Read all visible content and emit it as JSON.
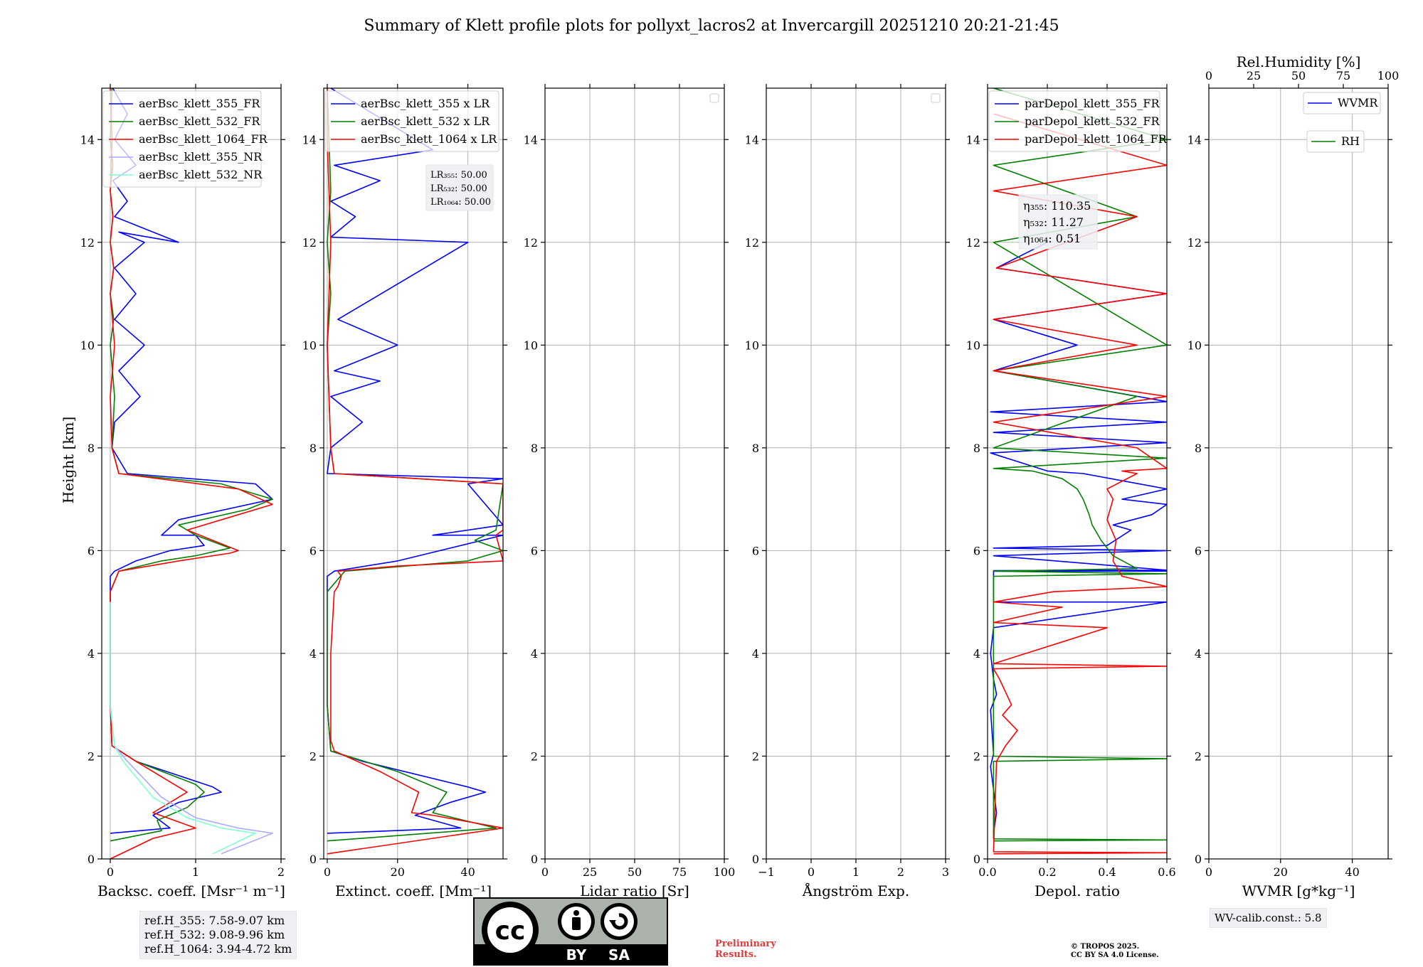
{
  "title": "Summary of Klett profile plots for pollyxt_lacros2 at Invercargill 20251210 20:21-21:45",
  "ylabel": "Height [km]",
  "ref_heights": [
    "ref.H_355: 7.58-9.07 km",
    "ref.H_532: 9.08-9.96 km",
    "ref.H_1064: 3.94-4.72 km"
  ],
  "wv_calib": "WV-calib.const.: 5.8",
  "preliminary": [
    "Preliminary",
    "Results."
  ],
  "copyright": [
    "© TROPOS 2025.",
    "CC BY SA 4.0 License."
  ],
  "license_badge": {
    "cc": "cc",
    "by": "BY",
    "sa": "SA"
  },
  "colors": {
    "c355": "#0000ff",
    "c532": "#008000",
    "c1064": "#ff0000",
    "c355nr": "#aaaaff",
    "c532nr": "#80ffd0",
    "grid": "#b0b0b0"
  },
  "chart_data": [
    {
      "type": "line",
      "id": "bsc",
      "xlabel": "Backsc. coeff. [Msr⁻¹ m⁻¹]",
      "xlim": [
        -0.1,
        2.0
      ],
      "ylim": [
        0,
        15
      ],
      "xticks": [
        0,
        1,
        2
      ],
      "yticks": [
        0,
        2,
        4,
        6,
        8,
        10,
        12,
        14
      ],
      "legend": [
        "aerBsc_klett_355_FR",
        "aerBsc_klett_532_FR",
        "aerBsc_klett_1064_FR",
        "aerBsc_klett_355_NR",
        "aerBsc_klett_532_NR"
      ],
      "series": [
        {
          "name": "aerBsc_klett_355_FR",
          "color": "#0000ff",
          "x": [
            0,
            0.7,
            0.5,
            0.8,
            1.3,
            1.2,
            0.3,
            0.02,
            0.0,
            0.0,
            0.05,
            0.3,
            0.7,
            1.1,
            1.0,
            0.6,
            0.8,
            1.9,
            1.7,
            0.2,
            0.02,
            0.05,
            0.35,
            0.1,
            0.4,
            0.05,
            0.3,
            0.05,
            0.4,
            0.1,
            0.8,
            0.05,
            0.2,
            0.03,
            0.3,
            0.05,
            0.2,
            0.03
          ],
          "y": [
            0.5,
            0.6,
            0.85,
            1.1,
            1.3,
            1.4,
            1.9,
            2.2,
            3.0,
            5.5,
            5.6,
            5.8,
            6.0,
            6.1,
            6.3,
            6.3,
            6.6,
            7.0,
            7.3,
            7.5,
            8.0,
            8.5,
            9.0,
            9.5,
            10.0,
            10.5,
            11.0,
            11.5,
            12.0,
            12.2,
            12.0,
            12.5,
            12.8,
            13.2,
            13.5,
            14.0,
            14.5,
            15.0
          ]
        },
        {
          "name": "aerBsc_klett_532_FR",
          "color": "#008000",
          "x": [
            0.0,
            0.6,
            0.55,
            0.9,
            1.1,
            1.0,
            0.3,
            0.02,
            0.0,
            0.0,
            0.1,
            0.6,
            1.0,
            1.4,
            1.0,
            0.8,
            1.6,
            1.9,
            1.3,
            0.1,
            0.02,
            0.05,
            0.0,
            0.04,
            0.0,
            0.04,
            0.0,
            0.03,
            0.0,
            0.03,
            0.0,
            0.02
          ],
          "y": [
            0.35,
            0.55,
            0.75,
            1.0,
            1.3,
            1.45,
            1.9,
            2.2,
            3.0,
            5.2,
            5.6,
            5.8,
            5.9,
            6.05,
            6.3,
            6.5,
            6.8,
            7.0,
            7.3,
            7.5,
            8.0,
            9.0,
            10.0,
            10.5,
            11.0,
            11.5,
            12.0,
            12.5,
            13.0,
            13.5,
            14.0,
            15.0
          ]
        },
        {
          "name": "aerBsc_klett_1064_FR",
          "color": "#ff0000",
          "x": [
            0.0,
            0.5,
            1.0,
            0.5,
            0.9,
            0.3,
            0.02,
            0.0,
            0.0,
            0.1,
            0.8,
            1.4,
            1.5,
            0.9,
            1.5,
            1.9,
            1.5,
            0.1,
            0.02,
            0.0,
            0.05,
            0.0,
            0.04,
            0.0,
            0.03,
            0.0,
            0.02,
            0.0
          ],
          "y": [
            0.0,
            0.4,
            0.6,
            0.9,
            1.3,
            1.9,
            2.2,
            3.0,
            5.2,
            5.6,
            5.8,
            5.95,
            6.0,
            6.4,
            6.7,
            6.9,
            7.2,
            7.5,
            8.0,
            9.0,
            10.0,
            11.0,
            11.5,
            12.0,
            12.5,
            13.0,
            14.0,
            15.0
          ]
        },
        {
          "name": "aerBsc_klett_355_NR",
          "color": "#aaaaff",
          "x": [
            1.3,
            1.9,
            1.5,
            1.0,
            0.6,
            0.2,
            0.05,
            0.0,
            0.0
          ],
          "y": [
            0.1,
            0.5,
            0.6,
            0.8,
            1.2,
            1.9,
            2.2,
            3.0,
            5.0
          ]
        },
        {
          "name": "aerBsc_klett_532_NR",
          "color": "#80ffd0",
          "x": [
            1.2,
            1.7,
            1.3,
            0.9,
            0.5,
            0.15,
            0.05,
            0.0,
            0.0
          ],
          "y": [
            0.1,
            0.5,
            0.6,
            0.8,
            1.2,
            1.9,
            2.2,
            3.0,
            5.0
          ]
        }
      ]
    },
    {
      "type": "line",
      "id": "ext",
      "xlabel": "Extinct. coeff. [Mm⁻¹]",
      "xlim": [
        -1,
        50
      ],
      "ylim": [
        0,
        15
      ],
      "xticks": [
        0,
        20,
        40
      ],
      "yticks": [
        0,
        2,
        4,
        6,
        8,
        10,
        12,
        14
      ],
      "legend": [
        "aerBsc_klett_355 x LR",
        "aerBsc_klett_532 x LR",
        "aerBsc_klett_1064 x LR"
      ],
      "annotation": [
        "LR₃₅₅: 50.00",
        "LR₅₃₂: 50.00",
        "LR₁₀₆₄: 50.00"
      ],
      "series": [
        {
          "name": "aerBsc_klett_355 x LR",
          "color": "#0000ff",
          "x": [
            0,
            38,
            25,
            35,
            45,
            40,
            10,
            1,
            0,
            0,
            2,
            20,
            50,
            30,
            50,
            40,
            50,
            0,
            1,
            10,
            1,
            15,
            2,
            20,
            3,
            40,
            1,
            8,
            1,
            15,
            2,
            30,
            1
          ],
          "y": [
            0.5,
            0.6,
            0.85,
            1.1,
            1.3,
            1.4,
            1.9,
            2.1,
            3.0,
            5.5,
            5.6,
            5.8,
            6.3,
            6.3,
            6.5,
            7.3,
            7.4,
            7.5,
            8.0,
            8.5,
            9.0,
            9.3,
            9.5,
            10.0,
            10.5,
            12.0,
            12.1,
            12.5,
            12.8,
            13.2,
            13.5,
            13.8,
            15.0
          ]
        },
        {
          "name": "aerBsc_klett_532 x LR",
          "color": "#008000",
          "x": [
            0,
            48,
            30,
            34,
            20,
            1,
            0,
            0,
            5,
            40,
            50,
            42,
            48,
            50,
            2,
            1,
            0,
            1,
            0,
            1,
            0
          ],
          "y": [
            0.35,
            0.6,
            0.9,
            1.3,
            1.7,
            2.1,
            3.0,
            5.2,
            5.6,
            5.8,
            6.0,
            6.2,
            6.4,
            7.3,
            7.5,
            8.0,
            10.0,
            11.0,
            12.0,
            13.0,
            15.0
          ]
        },
        {
          "name": "aerBsc_klett_1064 x LR",
          "color": "#ff0000",
          "x": [
            0,
            50,
            30,
            24,
            26,
            15,
            2,
            1,
            1,
            2,
            3,
            4,
            3,
            20,
            50,
            48,
            50,
            50,
            2,
            1,
            0,
            1,
            0,
            0
          ],
          "y": [
            0.1,
            0.6,
            0.85,
            0.9,
            1.3,
            1.7,
            2.1,
            2.3,
            4.0,
            5.2,
            5.3,
            5.5,
            5.6,
            5.7,
            5.8,
            6.3,
            6.4,
            7.3,
            7.5,
            8.0,
            10.0,
            12.0,
            14.0,
            15.0
          ]
        }
      ]
    },
    {
      "type": "line",
      "id": "lr",
      "xlabel": "Lidar ratio [Sr]",
      "xlim": [
        0,
        100
      ],
      "ylim": [
        0,
        15
      ],
      "xticks": [
        0,
        25,
        50,
        75,
        100
      ],
      "yticks": [
        0,
        2,
        4,
        6,
        8,
        10,
        12,
        14
      ],
      "series": []
    },
    {
      "type": "line",
      "id": "ae",
      "xlabel": "Ångström Exp.",
      "xlim": [
        -1,
        3
      ],
      "ylim": [
        0,
        15
      ],
      "xticks": [
        -1,
        0,
        1,
        2,
        3
      ],
      "yticks": [
        0,
        2,
        4,
        6,
        8,
        10,
        12,
        14
      ],
      "series": []
    },
    {
      "type": "line",
      "id": "dep",
      "xlabel": "Depol. ratio",
      "xlim": [
        0.0,
        0.6
      ],
      "ylim": [
        0,
        15
      ],
      "xticks": [
        0.0,
        0.2,
        0.4,
        0.6
      ],
      "tick_labels": [
        "0.0",
        "0.2",
        "0.4",
        "0.6"
      ],
      "yticks": [
        0,
        2,
        4,
        6,
        8,
        10,
        12,
        14
      ],
      "legend": [
        "parDepol_klett_355_FR",
        "parDepol_klett_532_FR",
        "parDepol_klett_1064_FR"
      ],
      "annotation": [
        "η₃₅₅: 110.35",
        "η₅₃₂: 11.27",
        "η₁₀₆₄: 0.51"
      ],
      "series": [
        {
          "name": "parDepol_klett_355_FR",
          "color": "#0000ff",
          "x": [
            0.02,
            0.03,
            0.01,
            0.02,
            0.01,
            0.03,
            0.02,
            0.01,
            0.02,
            0.6,
            0.02,
            0.02,
            0.6,
            0.02,
            0.02,
            0.6,
            0.02,
            0.6,
            0.02,
            0.4,
            0.48,
            0.42,
            0.55,
            0.6,
            0.45,
            0.6,
            0.32,
            0.2,
            0.01,
            0.6,
            0.02,
            0.6,
            0.01,
            0.6,
            0.02,
            0.3,
            0.02,
            0.6,
            0.03,
            0.2
          ],
          "y": [
            0.5,
            0.9,
            1.8,
            2.05,
            2.9,
            3.2,
            3.5,
            4.0,
            4.5,
            5.0,
            5.0,
            5.6,
            5.6,
            5.61,
            5.61,
            5.62,
            5.9,
            6.0,
            6.05,
            6.1,
            6.4,
            6.5,
            6.7,
            6.9,
            7.0,
            7.2,
            7.5,
            7.55,
            7.9,
            8.1,
            8.3,
            8.5,
            8.7,
            8.9,
            9.5,
            10.0,
            10.5,
            11.0,
            11.5,
            12.0
          ]
        },
        {
          "name": "parDepol_klett_532_FR",
          "color": "#008000",
          "x": [
            0.02,
            0.6,
            0.02,
            0.02,
            0.6,
            0.02,
            0.02,
            0.6,
            0.02,
            0.5,
            0.42,
            0.38,
            0.35,
            0.34,
            0.32,
            0.3,
            0.25,
            0.15,
            0.02,
            0.6,
            0.02,
            0.5,
            0.02,
            0.6,
            0.02,
            0.5,
            0.02,
            0.6,
            0.02
          ],
          "y": [
            0.35,
            0.37,
            0.39,
            1.9,
            1.95,
            2.0,
            5.5,
            5.55,
            5.6,
            5.65,
            5.9,
            6.2,
            6.5,
            6.7,
            7.0,
            7.2,
            7.4,
            7.55,
            7.6,
            7.8,
            8.0,
            9.0,
            9.5,
            10.0,
            12.0,
            12.5,
            13.5,
            14.0,
            15.0
          ]
        },
        {
          "name": "parDepol_klett_1064_FR",
          "color": "#ff0000",
          "x": [
            0.02,
            0.6,
            0.02,
            0.03,
            0.06,
            0.1,
            0.05,
            0.08,
            0.04,
            0.02,
            0.6,
            0.02,
            0.4,
            0.02,
            0.25,
            0.02,
            0.22,
            0.6,
            0.45,
            0.42,
            0.43,
            0.4,
            0.42,
            0.4,
            0.5,
            0.45,
            0.6,
            0.5,
            0.02,
            0.6,
            0.02,
            0.5,
            0.02,
            0.6,
            0.03,
            0.5,
            0.02,
            0.6,
            0.02
          ],
          "y": [
            0.1,
            0.12,
            0.14,
            1.9,
            2.2,
            2.5,
            2.8,
            3.0,
            3.5,
            3.7,
            3.75,
            3.8,
            4.5,
            4.6,
            4.9,
            5.0,
            5.2,
            5.3,
            5.5,
            5.8,
            6.2,
            6.6,
            7.0,
            7.2,
            7.5,
            7.55,
            7.6,
            8.0,
            8.5,
            9.0,
            9.5,
            10.0,
            10.5,
            11.0,
            11.5,
            12.5,
            13.0,
            13.5,
            14.5
          ]
        }
      ]
    },
    {
      "type": "line",
      "id": "wv",
      "xlabel": "WVMR [g*kg⁻¹]",
      "xlim": [
        0,
        50
      ],
      "ylim": [
        0,
        15
      ],
      "xticks": [
        0,
        20,
        40
      ],
      "yticks": [
        0,
        2,
        4,
        6,
        8,
        10,
        12,
        14
      ],
      "top_axis_label": "Rel.Humidity [%]",
      "top_xlim": [
        0,
        100
      ],
      "top_xticks": [
        0,
        25,
        50,
        75,
        100
      ],
      "legend": [
        "WVMR",
        "RH"
      ],
      "series": []
    }
  ]
}
